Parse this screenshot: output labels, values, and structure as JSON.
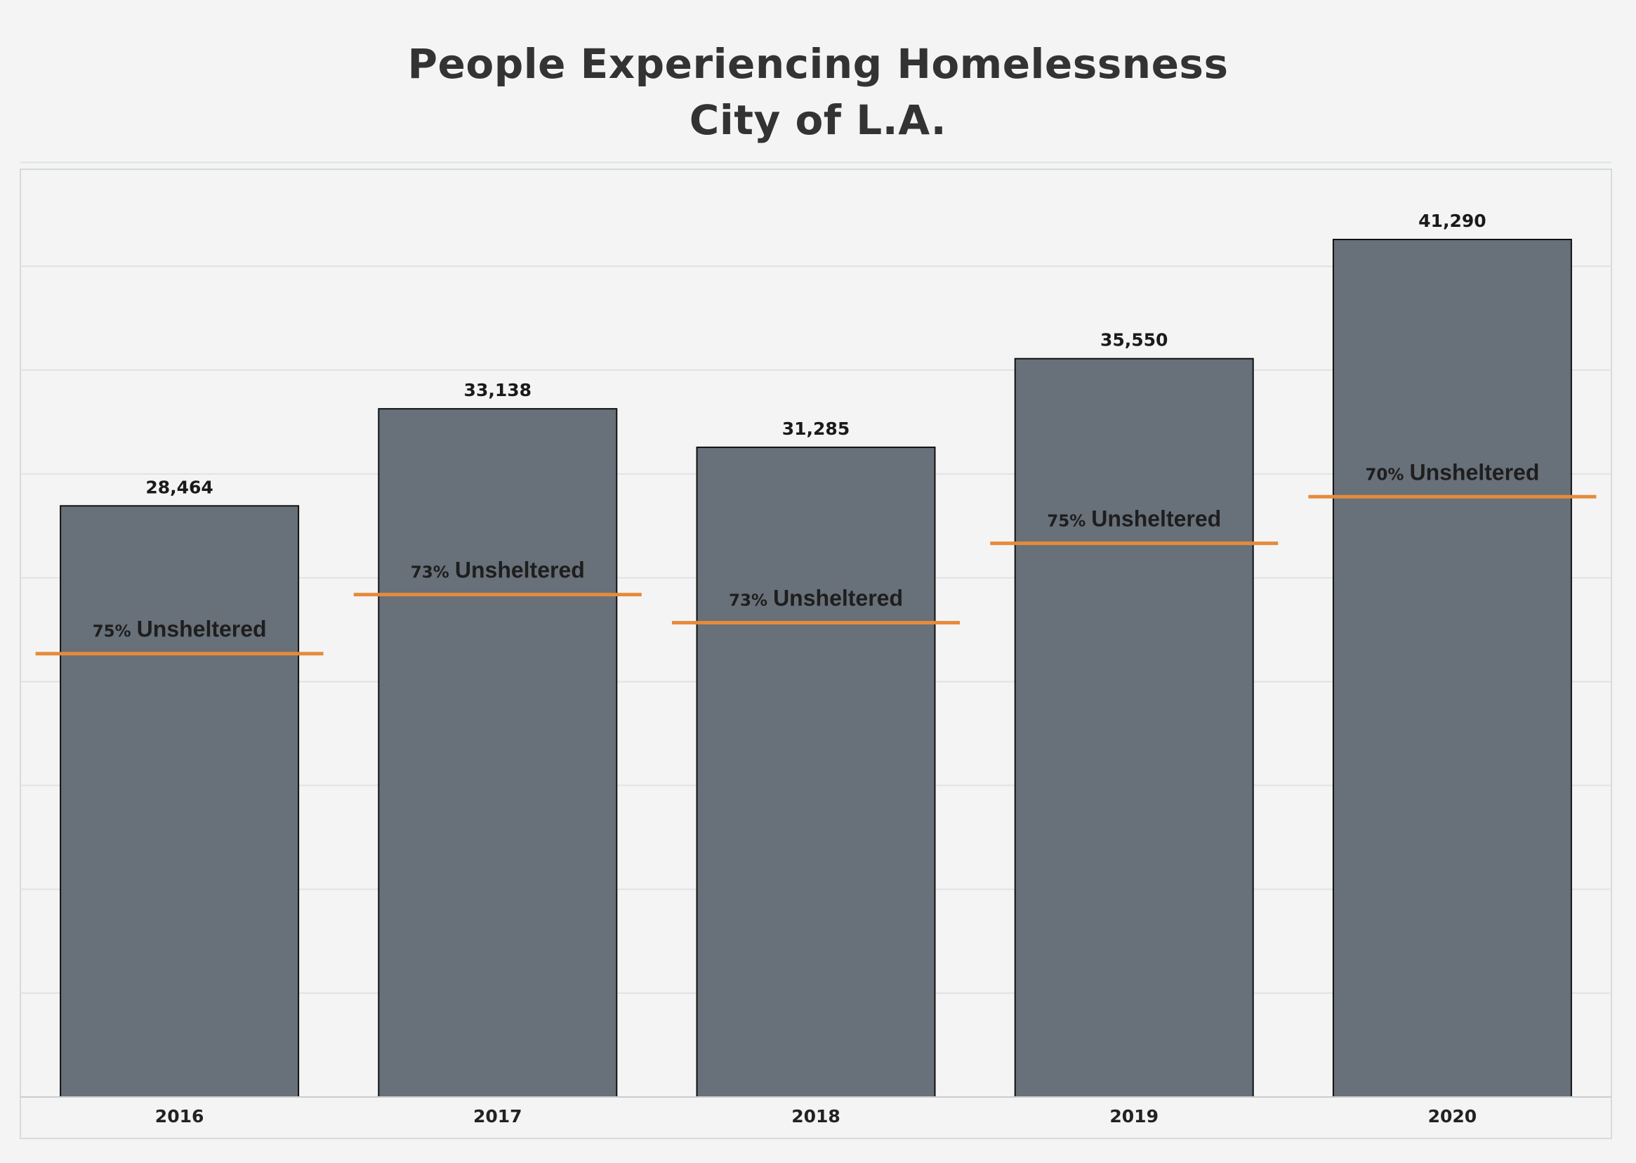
{
  "chart_data": {
    "type": "bar",
    "title": "People Experiencing Homelessness",
    "subtitle": "City of L.A.",
    "xlabel": "",
    "ylabel": "",
    "categories": [
      "2016",
      "2017",
      "2018",
      "2019",
      "2020"
    ],
    "values": [
      28464,
      33138,
      31285,
      35550,
      41290
    ],
    "value_labels": [
      "28,464",
      "33,138",
      "31,285",
      "35,550",
      "41,290"
    ],
    "unsheltered_pct": [
      75,
      73,
      73,
      75,
      70
    ],
    "unsheltered_pct_labels": [
      "75%",
      "73%",
      "73%",
      "75%",
      "70%"
    ],
    "unsheltered_word": "Unsheltered",
    "ylim": [
      0,
      45000
    ],
    "grid": true,
    "colors": {
      "bar_fill": "#687079",
      "bar_stroke": "#111111",
      "marker": "#e58b3c",
      "grid": "#dfe3e3",
      "background": "#f4f4f4"
    }
  }
}
